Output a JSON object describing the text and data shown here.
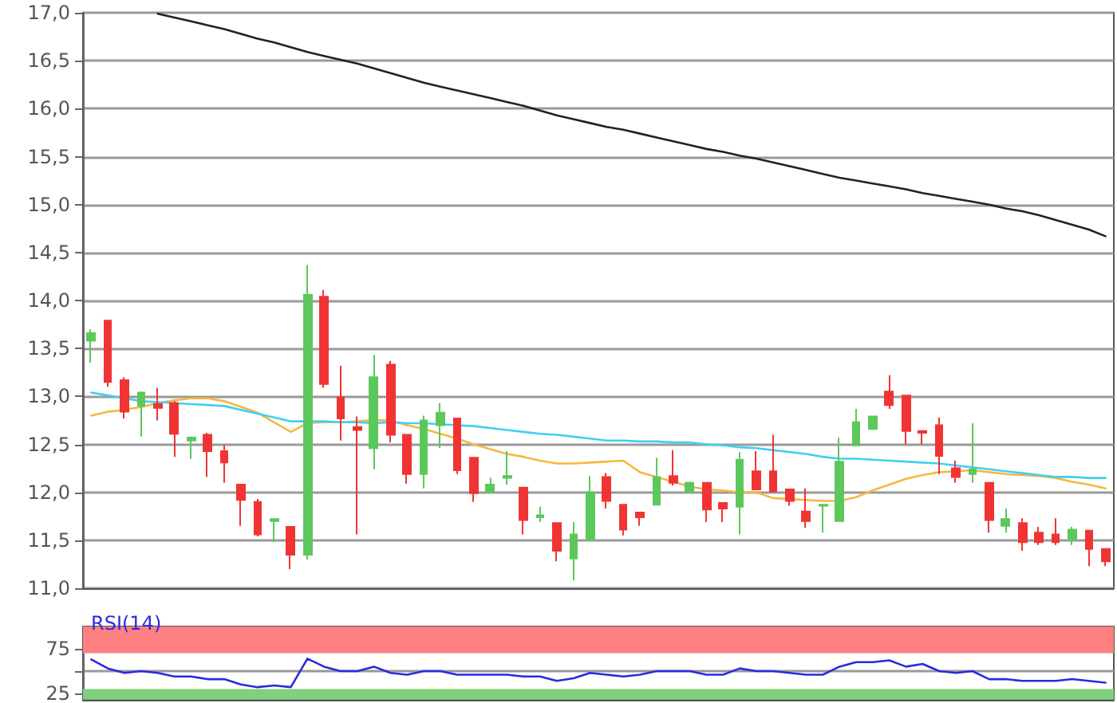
{
  "chart_data": [
    {
      "type": "candlestick",
      "categories": [
        null,
        null,
        null,
        null,
        null,
        null,
        null,
        null,
        null,
        null,
        null,
        null,
        null,
        null,
        null,
        null,
        null,
        null,
        null,
        null,
        null,
        null,
        null,
        null,
        null,
        null,
        null,
        null,
        null,
        null,
        null,
        null,
        null,
        null,
        null,
        null,
        null,
        null,
        null,
        null,
        null,
        null,
        null,
        null,
        null,
        null,
        null,
        null,
        null,
        null,
        null,
        null,
        null,
        null,
        null,
        null,
        null,
        null,
        null,
        null,
        null,
        null
      ],
      "ohlc": [
        [
          13.58,
          13.7,
          13.35,
          13.66
        ],
        [
          13.79,
          13.79,
          13.1,
          13.15
        ],
        [
          13.17,
          13.2,
          12.77,
          12.84
        ],
        [
          12.9,
          13.05,
          12.58,
          13.04
        ],
        [
          12.92,
          13.09,
          12.75,
          12.88
        ],
        [
          12.93,
          12.95,
          12.37,
          12.61
        ],
        [
          12.54,
          12.58,
          12.35,
          12.57
        ],
        [
          12.6,
          12.62,
          12.16,
          12.43
        ],
        [
          12.43,
          12.49,
          12.1,
          12.31
        ],
        [
          12.08,
          12.08,
          11.65,
          11.92
        ],
        [
          11.9,
          11.93,
          11.54,
          11.56
        ],
        [
          11.7,
          11.72,
          11.48,
          11.72
        ],
        [
          11.64,
          11.64,
          11.2,
          11.35
        ],
        [
          11.35,
          14.37,
          11.3,
          14.06
        ],
        [
          14.04,
          14.11,
          13.09,
          13.13
        ],
        [
          12.99,
          13.32,
          12.54,
          12.77
        ],
        [
          12.68,
          12.79,
          11.56,
          12.65
        ],
        [
          12.46,
          13.43,
          12.24,
          13.2
        ],
        [
          13.33,
          13.37,
          12.52,
          12.6
        ],
        [
          12.6,
          12.6,
          12.09,
          12.19
        ],
        [
          12.19,
          12.8,
          12.04,
          12.75
        ],
        [
          12.7,
          12.93,
          12.46,
          12.83
        ],
        [
          12.77,
          12.77,
          12.19,
          12.23
        ],
        [
          12.36,
          12.36,
          11.9,
          11.99
        ],
        [
          12.0,
          12.15,
          12.0,
          12.08
        ],
        [
          12.15,
          12.43,
          12.08,
          12.17
        ],
        [
          12.05,
          12.05,
          11.56,
          11.71
        ],
        [
          11.74,
          11.85,
          11.69,
          11.76
        ],
        [
          11.68,
          11.68,
          11.28,
          11.39
        ],
        [
          11.31,
          11.69,
          11.08,
          11.56
        ],
        [
          11.5,
          12.17,
          11.5,
          12.0
        ],
        [
          12.16,
          12.2,
          11.83,
          11.91
        ],
        [
          11.87,
          11.87,
          11.55,
          11.61
        ],
        [
          11.79,
          11.79,
          11.65,
          11.74
        ],
        [
          11.87,
          12.36,
          11.87,
          12.16
        ],
        [
          12.17,
          12.44,
          12.07,
          12.1
        ],
        [
          12.0,
          12.11,
          12.0,
          12.1
        ],
        [
          12.1,
          12.1,
          11.69,
          11.82
        ],
        [
          11.89,
          11.89,
          11.69,
          11.83
        ],
        [
          11.85,
          12.42,
          11.56,
          12.34
        ],
        [
          12.22,
          12.43,
          12.03,
          12.03
        ],
        [
          12.22,
          12.6,
          12.01,
          12.01
        ],
        [
          12.03,
          12.03,
          11.86,
          11.91
        ],
        [
          11.8,
          12.04,
          11.63,
          11.7
        ],
        [
          11.86,
          11.87,
          11.58,
          11.87
        ],
        [
          11.7,
          12.57,
          11.7,
          12.32
        ],
        [
          12.49,
          12.87,
          12.49,
          12.73
        ],
        [
          12.66,
          12.79,
          12.66,
          12.79
        ],
        [
          13.05,
          13.22,
          12.87,
          12.91
        ],
        [
          13.01,
          13.01,
          12.5,
          12.64
        ],
        [
          12.64,
          12.64,
          12.5,
          12.62
        ],
        [
          12.7,
          12.78,
          12.19,
          12.38
        ],
        [
          12.25,
          12.33,
          12.1,
          12.16
        ],
        [
          12.19,
          12.72,
          12.1,
          12.24
        ],
        [
          12.1,
          12.1,
          11.58,
          11.71
        ],
        [
          11.65,
          11.83,
          11.58,
          11.72
        ],
        [
          11.68,
          11.73,
          11.39,
          11.48
        ],
        [
          11.58,
          11.64,
          11.45,
          11.48
        ],
        [
          11.56,
          11.73,
          11.45,
          11.48
        ],
        [
          11.51,
          11.64,
          11.45,
          11.61
        ],
        [
          11.6,
          11.6,
          11.23,
          11.41
        ],
        [
          11.41,
          11.41,
          11.23,
          11.28
        ]
      ],
      "colors": [
        "#5cc85c",
        "#f03434",
        "#f03434",
        "#5cc85c",
        "#f03434",
        "#f03434",
        "#5cc85c",
        "#f03434",
        "#f03434",
        "#f03434",
        "#f03434",
        "#5cc85c",
        "#f03434",
        "#5cc85c",
        "#f03434",
        "#f03434",
        "#f03434",
        "#5cc85c",
        "#f03434",
        "#f03434",
        "#5cc85c",
        "#5cc85c",
        "#f03434",
        "#f03434",
        "#5cc85c",
        "#5cc85c",
        "#f03434",
        "#5cc85c",
        "#f03434",
        "#5cc85c",
        "#5cc85c",
        "#f03434",
        "#f03434",
        "#f03434",
        "#5cc85c",
        "#f03434",
        "#5cc85c",
        "#f03434",
        "#f03434",
        "#5cc85c",
        "#f03434",
        "#f03434",
        "#f03434",
        "#f03434",
        "#5cc85c",
        "#5cc85c",
        "#5cc85c",
        "#5cc85c",
        "#f03434",
        "#f03434",
        "#f03434",
        "#f03434",
        "#f03434",
        "#5cc85c",
        "#f03434",
        "#5cc85c",
        "#f03434",
        "#f03434",
        "#f03434",
        "#5cc85c",
        "#f03434",
        "#f03434"
      ],
      "series": [
        {
          "type": "line",
          "color": "#222222",
          "values": [
            null,
            null,
            null,
            null,
            16.99,
            16.95,
            16.91,
            16.87,
            16.83,
            16.78,
            16.73,
            16.69,
            16.64,
            16.59,
            16.55,
            16.51,
            16.47,
            16.42,
            16.37,
            16.32,
            16.27,
            16.23,
            16.19,
            16.15,
            16.11,
            16.07,
            16.03,
            15.98,
            15.93,
            15.89,
            15.85,
            15.81,
            15.78,
            15.74,
            15.7,
            15.66,
            15.62,
            15.58,
            15.55,
            15.51,
            15.48,
            15.44,
            15.4,
            15.36,
            15.32,
            15.28,
            15.25,
            15.22,
            15.19,
            15.16,
            15.12,
            15.09,
            15.06,
            15.03,
            15.0,
            14.96,
            14.93,
            14.89,
            14.84,
            14.79,
            14.74,
            14.67
          ]
        },
        {
          "type": "line",
          "color": "#f5b840",
          "values": [
            12.8,
            12.84,
            12.86,
            12.89,
            12.93,
            12.96,
            12.98,
            12.98,
            12.95,
            12.89,
            12.83,
            12.73,
            12.63,
            12.72,
            12.73,
            12.73,
            12.74,
            12.75,
            12.75,
            12.7,
            12.66,
            12.61,
            12.56,
            12.5,
            12.45,
            12.4,
            12.37,
            12.33,
            12.3,
            12.3,
            12.31,
            12.32,
            12.33,
            12.21,
            12.16,
            12.11,
            12.06,
            12.03,
            12.02,
            12.0,
            12.0,
            11.94,
            11.93,
            11.92,
            11.91,
            11.91,
            11.95,
            12.02,
            12.08,
            12.14,
            12.18,
            12.21,
            12.22,
            12.23,
            12.21,
            12.19,
            12.18,
            12.17,
            12.15,
            12.11,
            12.08,
            12.04
          ]
        },
        {
          "type": "line",
          "color": "#40d0f0",
          "values": [
            13.04,
            13.01,
            12.98,
            12.95,
            12.94,
            12.93,
            12.92,
            12.91,
            12.9,
            12.86,
            12.82,
            12.78,
            12.74,
            12.74,
            12.74,
            12.73,
            12.73,
            12.72,
            12.73,
            12.72,
            12.72,
            12.71,
            12.7,
            12.69,
            12.67,
            12.65,
            12.63,
            12.61,
            12.6,
            12.58,
            12.56,
            12.54,
            12.54,
            12.53,
            12.53,
            12.52,
            12.52,
            12.5,
            12.49,
            12.47,
            12.46,
            12.44,
            12.42,
            12.4,
            12.37,
            12.35,
            12.35,
            12.34,
            12.33,
            12.32,
            12.31,
            12.3,
            12.28,
            12.26,
            12.24,
            12.22,
            12.2,
            12.18,
            12.16,
            12.16,
            12.15,
            12.15
          ]
        }
      ],
      "ylim": [
        11,
        17
      ],
      "yticks": [
        {
          "value": 11,
          "label": "11,0"
        },
        {
          "value": 11.5,
          "label": "11,5"
        },
        {
          "value": 12,
          "label": "12,0"
        },
        {
          "value": 12.5,
          "label": "12,5"
        },
        {
          "value": 13,
          "label": "13,0"
        },
        {
          "value": 13.5,
          "label": "13,5"
        },
        {
          "value": 14,
          "label": "14,0"
        },
        {
          "value": 14.5,
          "label": "14,5"
        },
        {
          "value": 15,
          "label": "15,0"
        },
        {
          "value": 15.5,
          "label": "15,5"
        },
        {
          "value": 16,
          "label": "16,0"
        },
        {
          "value": 16.5,
          "label": "16,5"
        },
        {
          "value": 17,
          "label": "17,0"
        }
      ],
      "grid": "y",
      "tick_labels": "y",
      "marker": "none",
      "line_style": "solid"
    },
    {
      "type": "line",
      "title": "RSI(14)",
      "categories": [
        null,
        null,
        null,
        null,
        null,
        null,
        null,
        null,
        null,
        null,
        null,
        null,
        null,
        null,
        null,
        null,
        null,
        null,
        null,
        null,
        null,
        null,
        null,
        null,
        null,
        null,
        null,
        null,
        null,
        null,
        null,
        null,
        null,
        null,
        null,
        null,
        null,
        null,
        null,
        null,
        null,
        null,
        null,
        null,
        null,
        null,
        null,
        null,
        null,
        null,
        null,
        null,
        null,
        null,
        null,
        null,
        null,
        null,
        null,
        null,
        null,
        null
      ],
      "series": [
        {
          "color": "#2a2ae0",
          "values": [
            63,
            53,
            48,
            50,
            48,
            44,
            44,
            41,
            41,
            35,
            32,
            34,
            32,
            64,
            55,
            50,
            50,
            55,
            48,
            46,
            50,
            50,
            46,
            46,
            46,
            46,
            44,
            44,
            39,
            42,
            48,
            46,
            44,
            46,
            50,
            50,
            50,
            46,
            46,
            53,
            50,
            50,
            48,
            46,
            46,
            55,
            60,
            60,
            62,
            55,
            58,
            50,
            48,
            50,
            41,
            41,
            39,
            39,
            39,
            41,
            39,
            37
          ]
        }
      ],
      "ylim": [
        18,
        100
      ],
      "yticks": [
        25,
        {
          "value": 50,
          "label": null
        },
        75
      ],
      "bands": [
        {
          "axis": "y",
          "from": 70,
          "to": 100,
          "color": "#ff8080"
        },
        {
          "axis": "y",
          "from": 18,
          "to": 30,
          "color": "#80d080"
        }
      ],
      "grid": "y",
      "tick_labels": "y",
      "marker": "none",
      "line_style": "solid"
    }
  ]
}
